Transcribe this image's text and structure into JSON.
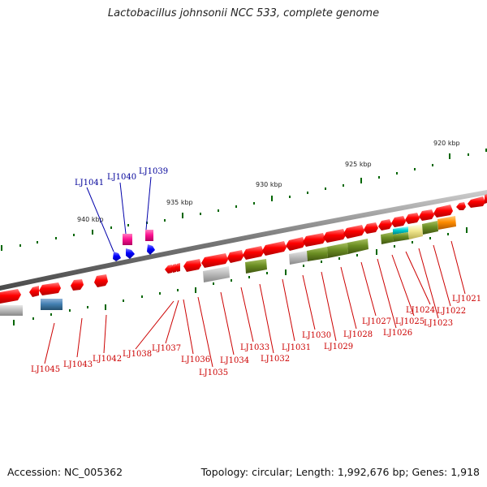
{
  "title": "Lactobacillus johnsonii NCC 533, complete genome",
  "footer": {
    "accession": "Accession: NC_005362",
    "summary": "Topology: circular; Length: 1,992,676 bp; Genes: 1,918"
  },
  "colors": {
    "forward_gene": "#ff0000",
    "reverse_gene": "#ff0000",
    "minus_gene_label": "#cc0000",
    "plus_gene_label": "#000099",
    "plus_gene": "#0000ff",
    "rna_gene": "#ff1493",
    "backbone": "#777777",
    "tick": "#006600"
  },
  "kbp_labels": [
    "940 kbp",
    "935 kbp",
    "930 kbp",
    "925 kbp",
    "920 kbp"
  ],
  "top_gene_labels": [
    "LJ1041",
    "LJ1040",
    "LJ1039"
  ],
  "bottom_gene_labels": [
    "LJ1045",
    "LJ1043",
    "LJ1042",
    "LJ1038",
    "LJ1037",
    "LJ1036",
    "LJ1035",
    "LJ1034",
    "LJ1033",
    "LJ1032",
    "LJ1031",
    "LJ1030",
    "LJ1029",
    "LJ1028",
    "LJ1027",
    "LJ1026",
    "LJ1025",
    "LJ1024",
    "LJ1023",
    "LJ1022",
    "LJ1021"
  ]
}
